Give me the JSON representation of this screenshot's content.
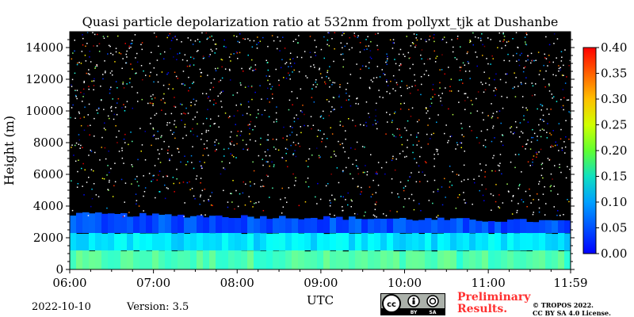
{
  "chart_data": {
    "type": "heatmap",
    "title": "Quasi particle depolarization ratio at 532nm from pollyxt_tjk at Dushanbe",
    "xlabel": "UTC",
    "ylabel": "Height (m)",
    "x_ticks": [
      "06:00",
      "07:00",
      "08:00",
      "09:00",
      "10:00",
      "11:00",
      "11:59"
    ],
    "y_ticks": [
      "0",
      "2000",
      "4000",
      "6000",
      "8000",
      "10000",
      "12000",
      "14000"
    ],
    "ylim": [
      0,
      15000
    ],
    "colorbar_ticks": [
      "0.00",
      "0.05",
      "0.10",
      "0.15",
      "0.20",
      "0.25",
      "0.30",
      "0.35",
      "0.40"
    ],
    "colorbar_range": [
      0.0,
      0.4
    ],
    "colormap": "jet",
    "background_color": "#000000",
    "layers": [
      {
        "bottom_m": 0,
        "top_m": 1200,
        "value": 0.18
      },
      {
        "bottom_m": 1200,
        "top_m": 2300,
        "value": 0.14
      },
      {
        "bottom_m": 2300,
        "top_m": 3500,
        "value": 0.08
      }
    ],
    "noise_top_m": 15000
  },
  "footer": {
    "date": "2022-10-10",
    "version": "Version: 3.5",
    "preliminary_line1": "Preliminary",
    "preliminary_line2": "Results.",
    "copyright_line1": "© TROPOS 2022.",
    "copyright_line2": "CC BY SA 4.0 License."
  },
  "license_badge": {
    "text_by": "BY",
    "text_sa": "SA",
    "text_cc": "cc"
  }
}
